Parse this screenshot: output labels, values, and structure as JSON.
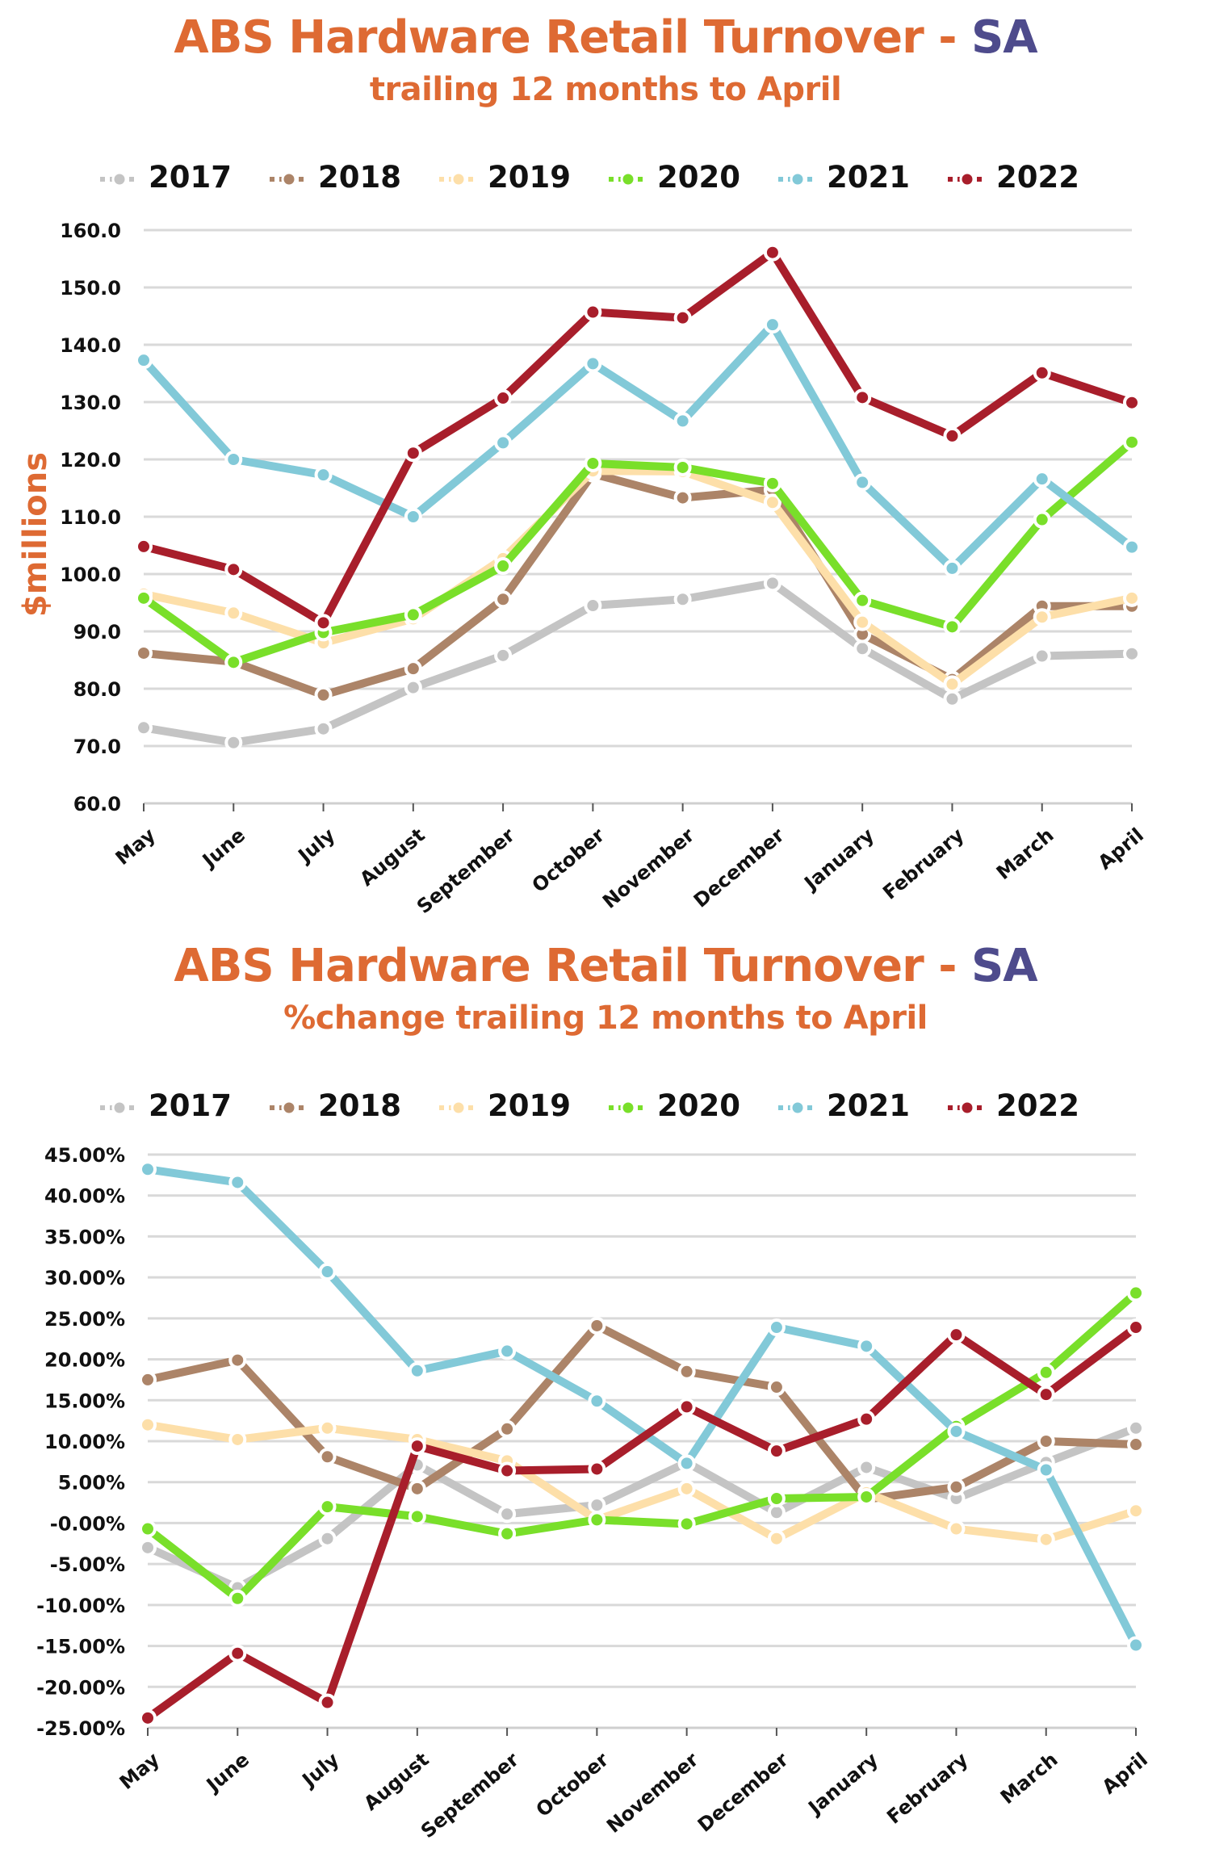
{
  "chart_data": [
    {
      "type": "line",
      "title": "ABS Hardware Retail Turnover",
      "title_separator": "-",
      "title_region": "SA",
      "subtitle": "trailing 12 months to April",
      "xlabel": "",
      "ylabel": "$millions",
      "categories": [
        "May",
        "June",
        "July",
        "August",
        "September",
        "October",
        "November",
        "December",
        "January",
        "February",
        "March",
        "April"
      ],
      "ylim": [
        60,
        160
      ],
      "yticks": [
        "60.0",
        "70.0",
        "80.0",
        "90.0",
        "100.0",
        "110.0",
        "120.0",
        "130.0",
        "140.0",
        "150.0",
        "160.0"
      ],
      "grid": true,
      "legend_position": "top",
      "series": [
        {
          "name": "2017",
          "color": "#c4c4c4",
          "values": [
            73.2,
            70.6,
            73.0,
            80.2,
            85.8,
            94.5,
            95.6,
            98.4,
            87.0,
            78.2,
            85.7,
            86.1
          ]
        },
        {
          "name": "2018",
          "color": "#ac8468",
          "values": [
            86.2,
            84.7,
            78.9,
            83.5,
            95.6,
            117.5,
            113.3,
            114.7,
            89.5,
            81.6,
            94.4,
            94.4
          ]
        },
        {
          "name": "2019",
          "color": "#fddfa9",
          "values": [
            96.5,
            93.2,
            88.0,
            92.2,
            102.7,
            118.0,
            117.9,
            112.5,
            91.6,
            80.8,
            92.5,
            95.8
          ]
        },
        {
          "name": "2020",
          "color": "#79df2a",
          "values": [
            95.8,
            84.6,
            89.8,
            92.9,
            101.4,
            119.3,
            118.6,
            115.8,
            95.4,
            90.8,
            109.5,
            123.0
          ]
        },
        {
          "name": "2021",
          "color": "#82c9d8",
          "values": [
            137.3,
            120.0,
            117.3,
            110.0,
            122.9,
            136.7,
            126.7,
            143.5,
            116.0,
            101.0,
            116.6,
            104.7
          ]
        },
        {
          "name": "2022",
          "color": "#a81e2b",
          "values": [
            104.8,
            100.8,
            91.5,
            121.1,
            130.7,
            145.7,
            144.7,
            156.1,
            130.8,
            124.1,
            135.1,
            129.9
          ]
        }
      ]
    },
    {
      "type": "line",
      "title": "ABS Hardware Retail Turnover",
      "title_separator": "-",
      "title_region": "SA",
      "subtitle": "%change trailing 12 months to April",
      "xlabel": "",
      "ylabel": "",
      "categories": [
        "May",
        "June",
        "July",
        "August",
        "September",
        "October",
        "November",
        "December",
        "January",
        "February",
        "March",
        "April"
      ],
      "ylim": [
        -25,
        45
      ],
      "yticks": [
        "-25.00%",
        "-20.00%",
        "-15.00%",
        "-10.00%",
        "-5.00%",
        "-0.00%",
        "5.00%",
        "10.00%",
        "15.00%",
        "20.00%",
        "25.00%",
        "30.00%",
        "35.00%",
        "40.00%",
        "45.00%"
      ],
      "grid": true,
      "legend_position": "top",
      "series": [
        {
          "name": "2017",
          "color": "#c4c4c4",
          "values": [
            -3.0,
            -7.9,
            -1.9,
            7.1,
            1.1,
            2.2,
            7.4,
            1.3,
            6.8,
            3.0,
            7.4,
            11.6
          ]
        },
        {
          "name": "2018",
          "color": "#ac8468",
          "values": [
            17.5,
            19.9,
            8.1,
            4.2,
            11.5,
            24.1,
            18.5,
            16.6,
            2.9,
            4.4,
            10.0,
            9.6
          ]
        },
        {
          "name": "2019",
          "color": "#fddfa9",
          "values": [
            12.0,
            10.2,
            11.6,
            10.2,
            7.6,
            0.4,
            4.2,
            -1.9,
            3.7,
            -0.7,
            -2.0,
            1.5
          ]
        },
        {
          "name": "2020",
          "color": "#79df2a",
          "values": [
            -0.7,
            -9.2,
            2.0,
            0.8,
            -1.3,
            0.4,
            -0.1,
            3.0,
            3.2,
            11.8,
            18.4,
            28.1
          ]
        },
        {
          "name": "2021",
          "color": "#82c9d8",
          "values": [
            43.2,
            41.6,
            30.7,
            18.6,
            21.0,
            14.9,
            7.3,
            23.9,
            21.6,
            11.2,
            6.5,
            -14.9
          ]
        },
        {
          "name": "2022",
          "color": "#a81e2b",
          "values": [
            -23.8,
            -15.9,
            -21.9,
            9.4,
            6.4,
            6.6,
            14.2,
            8.8,
            12.7,
            23.0,
            15.7,
            23.9
          ]
        }
      ]
    }
  ]
}
